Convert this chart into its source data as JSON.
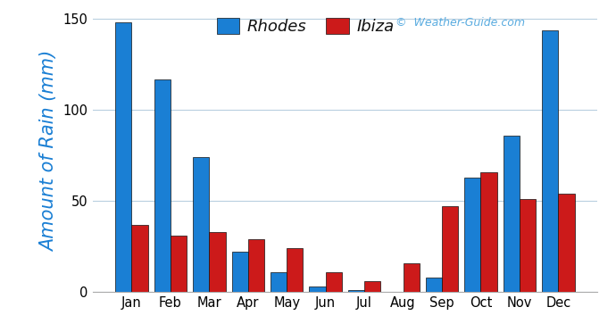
{
  "months": [
    "Jan",
    "Feb",
    "Mar",
    "Apr",
    "May",
    "Jun",
    "Jul",
    "Aug",
    "Sep",
    "Oct",
    "Nov",
    "Dec"
  ],
  "rhodes": [
    148,
    117,
    74,
    22,
    11,
    3,
    1,
    0,
    8,
    63,
    86,
    144
  ],
  "ibiza": [
    37,
    31,
    33,
    29,
    24,
    11,
    6,
    16,
    47,
    66,
    51,
    54
  ],
  "rhodes_color": "#1a7fd4",
  "ibiza_color": "#cc1a1a",
  "grid_color": "#b8cfe0",
  "background_color": "#ffffff",
  "ylabel": "Amount of Rain (mm)",
  "ylabel_color": "#1a7fd4",
  "ylim": [
    0,
    155
  ],
  "yticks": [
    0,
    50,
    100,
    150
  ],
  "watermark": "©  Weather-Guide.com",
  "watermark_color": "#5aace0",
  "legend_labels": [
    "Rhodes",
    "Ibiza"
  ],
  "bar_width": 0.42
}
